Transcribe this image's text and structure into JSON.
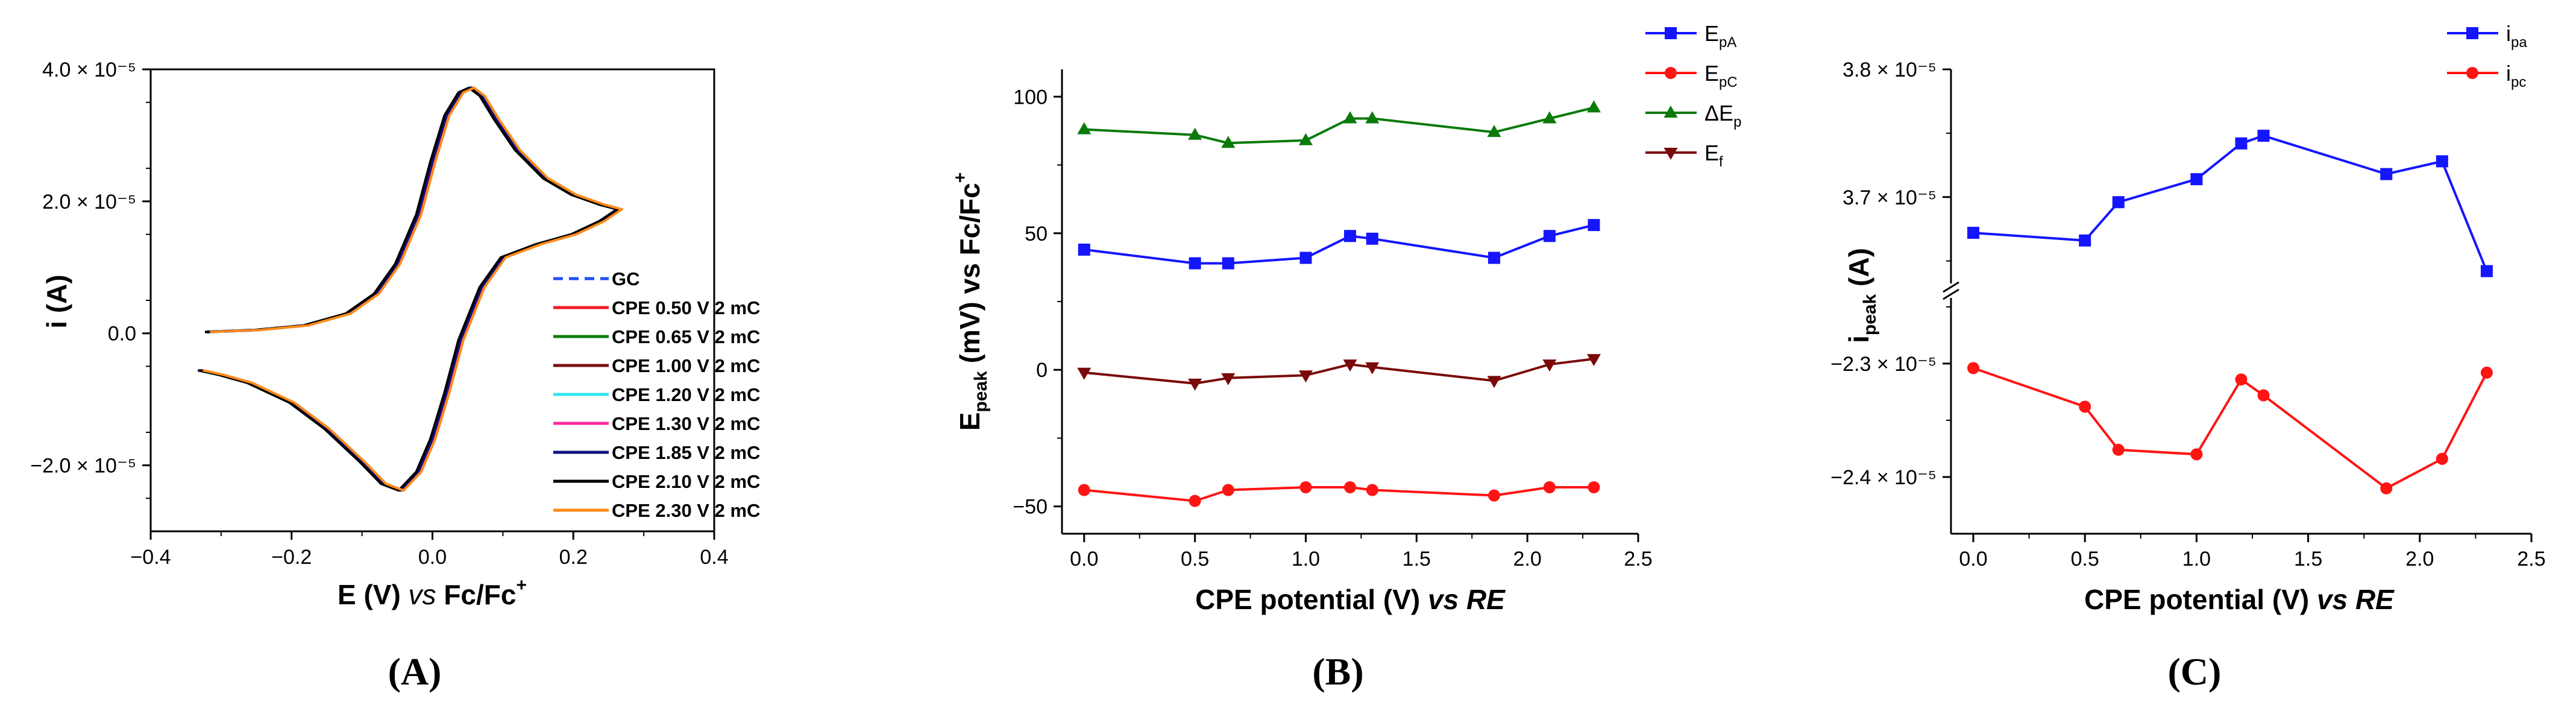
{
  "chart_data": [
    {
      "panel_label": "(A)",
      "type": "line",
      "xlabel": "E (V) vs Fc/Fc+",
      "xlabel_parts": {
        "e": "E (V) ",
        "vs": "vs",
        "ref": " Fc/Fc",
        "sup": "+"
      },
      "ylabel": "i (A)",
      "xlim": [
        -0.4,
        0.4
      ],
      "ylim": [
        -3e-05,
        4e-05
      ],
      "x_ticks": [
        "−0.4",
        "−0.2",
        "0.0",
        "0.2",
        "0.4"
      ],
      "y_ticks": [
        "4.0 × 10⁻⁵",
        "2.0 × 10⁻⁵",
        "0.0",
        "−2.0 × 10⁻⁵"
      ],
      "y_tick_values": [
        4e-05,
        2e-05,
        0,
        -2e-05
      ],
      "series": [
        {
          "name": "GC",
          "color": "#1f4fff"
        },
        {
          "name": "CPE 0.50 V 2 mC",
          "color": "#ee1c24"
        },
        {
          "name": "CPE 0.65 V 2 mC",
          "color": "#0c7f0c"
        },
        {
          "name": "CPE 1.00 V 2 mC",
          "color": "#7b1010"
        },
        {
          "name": "CPE 1.20 V 2 mC",
          "color": "#2ee6f0"
        },
        {
          "name": "CPE 1.30 V 2 mC",
          "color": "#ff2aa0"
        },
        {
          "name": "CPE 1.85 V 2 mC",
          "color": "#101080"
        },
        {
          "name": "CPE 2.10 V 2 mC",
          "color": "#000000"
        },
        {
          "name": "CPE 2.30 V 2 mC",
          "color": "#ff8a1a"
        }
      ],
      "cv_forward": [
        [
          -0.32,
          2e-07
        ],
        [
          -0.25,
          5e-07
        ],
        [
          -0.18,
          1.2e-06
        ],
        [
          -0.12,
          3e-06
        ],
        [
          -0.08,
          6e-06
        ],
        [
          -0.05,
          1.05e-05
        ],
        [
          -0.02,
          1.8e-05
        ],
        [
          0.0,
          2.6e-05
        ],
        [
          0.02,
          3.3e-05
        ],
        [
          0.04,
          3.65e-05
        ],
        [
          0.055,
          3.72e-05
        ],
        [
          0.07,
          3.6e-05
        ],
        [
          0.09,
          3.25e-05
        ],
        [
          0.12,
          2.78e-05
        ],
        [
          0.16,
          2.35e-05
        ],
        [
          0.2,
          2.1e-05
        ],
        [
          0.24,
          1.95e-05
        ],
        [
          0.265,
          1.88e-05
        ]
      ],
      "cv_reverse": [
        [
          0.265,
          1.88e-05
        ],
        [
          0.24,
          1.7e-05
        ],
        [
          0.2,
          1.5e-05
        ],
        [
          0.15,
          1.35e-05
        ],
        [
          0.1,
          1.15e-05
        ],
        [
          0.07,
          7e-06
        ],
        [
          0.04,
          -1e-06
        ],
        [
          0.02,
          -9e-06
        ],
        [
          0.0,
          -1.6e-05
        ],
        [
          -0.02,
          -2.1e-05
        ],
        [
          -0.045,
          -2.38e-05
        ],
        [
          -0.07,
          -2.28e-05
        ],
        [
          -0.1,
          -1.95e-05
        ],
        [
          -0.15,
          -1.45e-05
        ],
        [
          -0.2,
          -1.05e-05
        ],
        [
          -0.26,
          -7.5e-06
        ],
        [
          -0.3,
          -6.3e-06
        ],
        [
          -0.33,
          -5.6e-06
        ]
      ]
    },
    {
      "panel_label": "(B)",
      "type": "line",
      "xlabel": "CPE potential (V) vs RE",
      "xlabel_parts": {
        "main": "CPE potential (V) ",
        "vs": "vs RE"
      },
      "ylabel": "Epeak (mV) vs Fc/Fc+",
      "ylabel_parts": {
        "e": "E",
        "sub": "peak",
        "rest": " (mV) vs Fc/Fc",
        "sup": "+"
      },
      "xlim": [
        -0.1,
        2.5
      ],
      "ylim": [
        -60,
        110
      ],
      "x_ticks": [
        "0.0",
        "0.5",
        "1.0",
        "1.5",
        "2.0",
        "2.5"
      ],
      "x_tick_values": [
        0,
        0.5,
        1.0,
        1.5,
        2.0,
        2.5
      ],
      "y_ticks": [
        "−50",
        "0",
        "50",
        "100"
      ],
      "y_tick_values": [
        -50,
        0,
        50,
        100
      ],
      "x": [
        0.0,
        0.5,
        0.65,
        1.0,
        1.2,
        1.3,
        1.85,
        2.1,
        2.3
      ],
      "series": [
        {
          "name": "EpA",
          "base": "E",
          "sub": "pA",
          "color": "#1515ff",
          "marker": "square",
          "values": [
            44,
            39,
            39,
            41,
            49,
            48,
            41,
            49,
            53
          ]
        },
        {
          "name": "EpC",
          "base": "E",
          "sub": "pC",
          "color": "#ff1414",
          "marker": "circle",
          "values": [
            -44,
            -48,
            -44,
            -43,
            -43,
            -44,
            -46,
            -43,
            -43
          ]
        },
        {
          "name": "ΔEp",
          "base": "ΔE",
          "sub": "p",
          "color": "#0a7a0a",
          "marker": "triangle-up",
          "values": [
            88,
            86,
            83,
            84,
            92,
            92,
            87,
            92,
            96
          ]
        },
        {
          "name": "Ef",
          "base": "E",
          "sub": "f",
          "color": "#7a0a0a",
          "marker": "triangle-down",
          "values": [
            -1,
            -5,
            -3,
            -2,
            2,
            1,
            -4,
            2,
            4
          ]
        }
      ]
    },
    {
      "panel_label": "(C)",
      "type": "line",
      "xlabel": "CPE potential (V) vs RE",
      "xlabel_parts": {
        "main": "CPE potential (V) ",
        "vs": "vs RE"
      },
      "ylabel": "ipeak (A)",
      "ylabel_parts": {
        "i": "i",
        "sub": "peak",
        "rest": " (A)"
      },
      "axis_break": true,
      "xlim": [
        -0.1,
        2.5
      ],
      "ylim_upper": [
        3.63e-05,
        3.8e-05
      ],
      "ylim_lower": [
        -2.45e-05,
        -2.24e-05
      ],
      "x_ticks": [
        "0.0",
        "0.5",
        "1.0",
        "1.5",
        "2.0",
        "2.5"
      ],
      "x_tick_values": [
        0,
        0.5,
        1.0,
        1.5,
        2.0,
        2.5
      ],
      "y_ticks_upper": [
        "3.8 × 10⁻⁵",
        "3.7 × 10⁻⁵"
      ],
      "y_tick_values_upper": [
        3.8e-05,
        3.7e-05
      ],
      "y_ticks_lower": [
        "−2.3 × 10⁻⁵",
        "−2.4 × 10⁻⁵"
      ],
      "y_tick_values_lower": [
        -2.3e-05,
        -2.4e-05
      ],
      "x": [
        0.0,
        0.5,
        0.65,
        1.0,
        1.2,
        1.3,
        1.85,
        2.1,
        2.3
      ],
      "series": [
        {
          "name": "ipa",
          "base": "i",
          "sub": "pa",
          "color": "#1515ff",
          "marker": "square",
          "values": [
            3.672e-05,
            3.666e-05,
            3.696e-05,
            3.714e-05,
            3.742e-05,
            3.748e-05,
            3.718e-05,
            3.728e-05,
            3.642e-05
          ]
        },
        {
          "name": "ipc",
          "base": "i",
          "sub": "pc",
          "color": "#ff1414",
          "marker": "circle",
          "values": [
            -2.304e-05,
            -2.338e-05,
            -2.376e-05,
            -2.38e-05,
            -2.314e-05,
            -2.328e-05,
            -2.41e-05,
            -2.384e-05,
            -2.308e-05
          ]
        }
      ]
    }
  ]
}
